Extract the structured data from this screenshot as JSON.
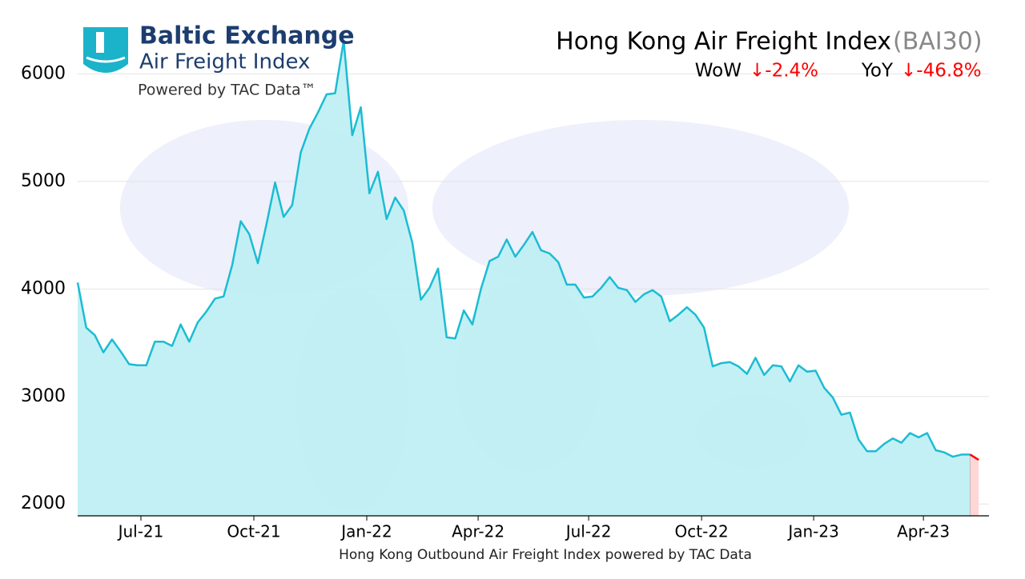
{
  "logo": {
    "name": "Baltic Exchange",
    "product": "Air Freight Index",
    "powered": "Powered by TAC Data™"
  },
  "chart_data": {
    "type": "area",
    "title": "Hong Kong Air Freight Index",
    "title_code": "(BAI30)",
    "changes": [
      {
        "label": "WoW",
        "value": "↓-2.4%"
      },
      {
        "label": "YoY",
        "value": "↓-46.8%"
      }
    ],
    "x_label": "Hong Kong Outbound Air Freight Index powered by TAC Data",
    "color": "#1bbcd3",
    "fill_color": "#bdeef3",
    "highlight_color": "#ff0000",
    "highlight_fill": "#ffd6d6",
    "grid": true,
    "xlim": [
      0,
      106.2
    ],
    "xticks": [
      {
        "value": 7.37,
        "label": "Jul-21"
      },
      {
        "value": 20.53,
        "label": "Oct-21"
      },
      {
        "value": 33.69,
        "label": "Jan-22"
      },
      {
        "value": 46.67,
        "label": "Apr-22"
      },
      {
        "value": 59.55,
        "label": "Jul-22"
      },
      {
        "value": 72.71,
        "label": "Oct-22"
      },
      {
        "value": 85.77,
        "label": "Jan-23"
      },
      {
        "value": 98.56,
        "label": "Apr-23"
      }
    ],
    "ylim": [
      1890,
      6390
    ],
    "yticks": [
      2000,
      3000,
      4000,
      5000,
      6000
    ],
    "values": [
      4060,
      3640,
      3570,
      3410,
      3530,
      3420,
      3300,
      3290,
      3290,
      3510,
      3510,
      3470,
      3670,
      3510,
      3690,
      3790,
      3910,
      3930,
      4220,
      4630,
      4510,
      4240,
      4600,
      4990,
      4670,
      4780,
      5270,
      5490,
      5640,
      5810,
      5820,
      6310,
      5430,
      5690,
      4890,
      5090,
      4650,
      4850,
      4730,
      4430,
      3900,
      4010,
      4190,
      3550,
      3540,
      3800,
      3670,
      4000,
      4260,
      4300,
      4460,
      4300,
      4410,
      4530,
      4360,
      4330,
      4250,
      4040,
      4040,
      3920,
      3930,
      4010,
      4110,
      4010,
      3990,
      3880,
      3950,
      3990,
      3930,
      3700,
      3760,
      3830,
      3760,
      3640,
      3280,
      3310,
      3320,
      3280,
      3210,
      3360,
      3200,
      3290,
      3280,
      3140,
      3290,
      3230,
      3240,
      3080,
      2990,
      2830,
      2850,
      2600,
      2490,
      2490,
      2560,
      2610,
      2570,
      2660,
      2620,
      2660,
      2500,
      2480,
      2440,
      2460,
      2460,
      2410
    ]
  }
}
